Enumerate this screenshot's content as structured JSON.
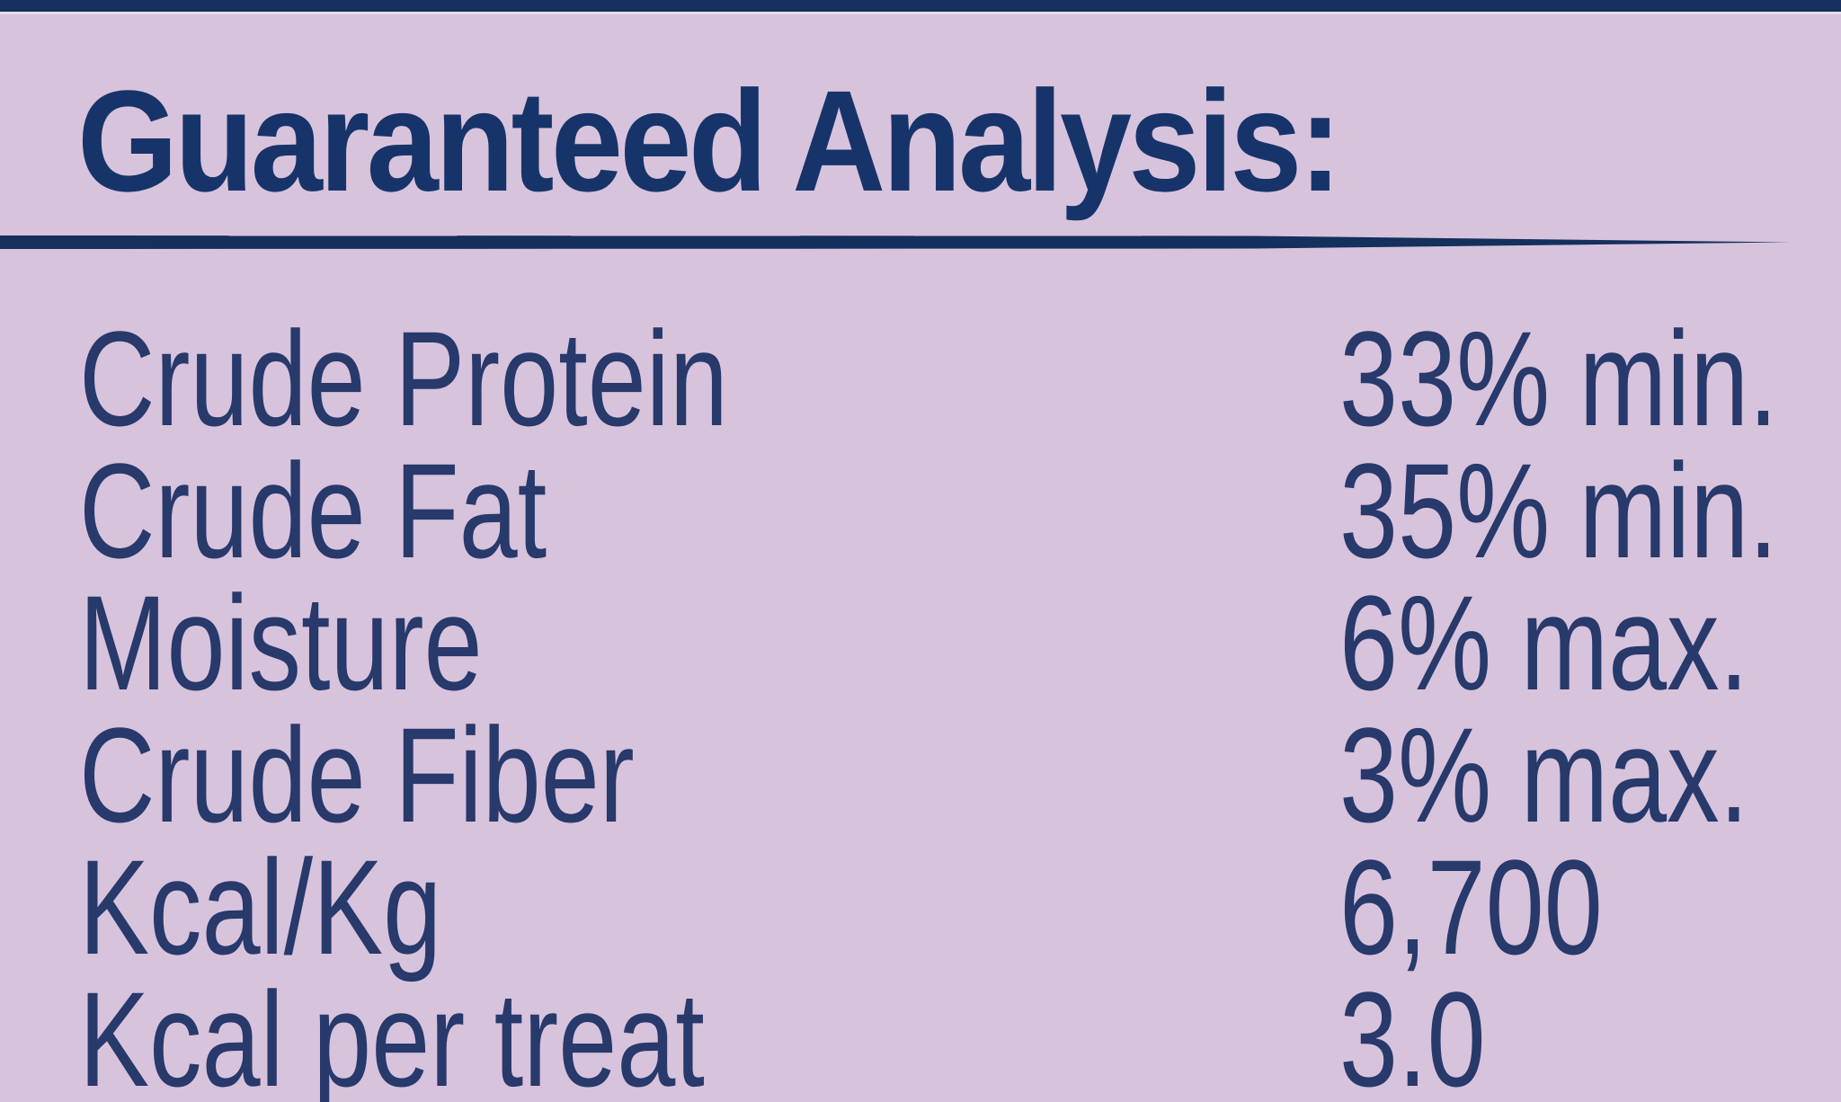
{
  "label": {
    "title": "Guaranteed Analysis:",
    "rows": [
      {
        "name": "Crude Protein",
        "value": "33% min."
      },
      {
        "name": "Crude Fat",
        "value": "35% min."
      },
      {
        "name": "Moisture",
        "value": "6% max."
      },
      {
        "name": "Crude Fiber",
        "value": "3% max."
      },
      {
        "name": "Kcal/Kg",
        "value": "6,700"
      },
      {
        "name": "Kcal per treat",
        "value": "3.0"
      }
    ]
  },
  "colors": {
    "background": "#d8c3dc",
    "text_navy": "#28396b",
    "title_navy": "#17346a",
    "bar_navy": "#14305d"
  }
}
